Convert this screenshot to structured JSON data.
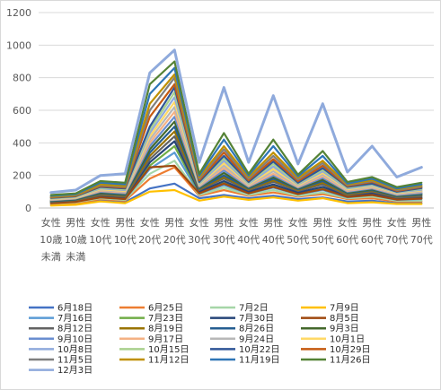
{
  "chart_data": {
    "type": "line",
    "ylim": [
      0,
      1200
    ],
    "yticks": [
      0,
      200,
      400,
      600,
      800,
      1000,
      1200
    ],
    "grid": "horizontal",
    "legend_position": "bottom",
    "categories": [
      {
        "sex": "女性",
        "age": "10歳未満"
      },
      {
        "sex": "男性",
        "age": "10歳未満"
      },
      {
        "sex": "女性",
        "age": "10代"
      },
      {
        "sex": "男性",
        "age": "10代"
      },
      {
        "sex": "女性",
        "age": "20代"
      },
      {
        "sex": "男性",
        "age": "20代"
      },
      {
        "sex": "女性",
        "age": "30代"
      },
      {
        "sex": "男性",
        "age": "30代"
      },
      {
        "sex": "女性",
        "age": "40代"
      },
      {
        "sex": "男性",
        "age": "40代"
      },
      {
        "sex": "女性",
        "age": "50代"
      },
      {
        "sex": "男性",
        "age": "50代"
      },
      {
        "sex": "女性",
        "age": "60代"
      },
      {
        "sex": "男性",
        "age": "60代"
      },
      {
        "sex": "女性",
        "age": "70代"
      },
      {
        "sex": "男性",
        "age": "70代"
      }
    ],
    "category_label_rows": [
      [
        "女性",
        "男性",
        "女性",
        "男性",
        "女性",
        "男性",
        "女性",
        "男性",
        "女性",
        "男性",
        "女性",
        "男性",
        "女性",
        "男性",
        "女性",
        "男性"
      ],
      [
        "10歳",
        "10歳",
        "10代",
        "10代",
        "20代",
        "20代",
        "30代",
        "30代",
        "40代",
        "40代",
        "50代",
        "50代",
        "60代",
        "60代",
        "70代",
        "70代"
      ],
      [
        "未満",
        "未満",
        "",
        "",
        "",
        "",
        "",
        "",
        "",
        "",
        "",
        "",
        "",
        "",
        "",
        ""
      ]
    ],
    "series": [
      {
        "name": "6月18日",
        "color": "#4472c4",
        "values": [
          20,
          25,
          45,
          35,
          120,
          150,
          60,
          80,
          60,
          75,
          55,
          65,
          40,
          45,
          30,
          30
        ]
      },
      {
        "name": "6月25日",
        "color": "#ed7d31",
        "values": [
          25,
          30,
          55,
          45,
          180,
          250,
          75,
          110,
          75,
          95,
          70,
          85,
          55,
          60,
          40,
          40
        ]
      },
      {
        "name": "7月2日",
        "color": "#a5d6a7",
        "values": [
          28,
          35,
          60,
          50,
          210,
          290,
          80,
          125,
          80,
          110,
          75,
          95,
          60,
          70,
          45,
          45
        ]
      },
      {
        "name": "7月9日",
        "color": "#ffc000",
        "values": [
          15,
          20,
          40,
          30,
          100,
          110,
          45,
          70,
          50,
          65,
          45,
          60,
          30,
          35,
          25,
          25
        ]
      },
      {
        "name": "7月16日",
        "color": "#5b9bd5",
        "values": [
          30,
          40,
          65,
          55,
          240,
          340,
          90,
          140,
          90,
          125,
          85,
          110,
          65,
          80,
          50,
          55
        ]
      },
      {
        "name": "7月23日",
        "color": "#70ad47",
        "values": [
          32,
          42,
          70,
          60,
          260,
          380,
          95,
          155,
          95,
          135,
          90,
          120,
          70,
          85,
          55,
          60
        ]
      },
      {
        "name": "7月30日",
        "color": "#264478",
        "values": [
          35,
          45,
          75,
          65,
          280,
          410,
          100,
          165,
          100,
          145,
          95,
          130,
          75,
          90,
          60,
          65
        ]
      },
      {
        "name": "8月5日",
        "color": "#9e480e",
        "values": [
          30,
          38,
          65,
          55,
          250,
          260,
          90,
          150,
          90,
          130,
          85,
          115,
          68,
          80,
          52,
          58
        ]
      },
      {
        "name": "8月12日",
        "color": "#636363",
        "values": [
          38,
          48,
          80,
          70,
          300,
          440,
          110,
          180,
          110,
          160,
          105,
          145,
          80,
          100,
          65,
          72
        ]
      },
      {
        "name": "8月19日",
        "color": "#997300",
        "values": [
          40,
          50,
          85,
          75,
          320,
          470,
          115,
          190,
          115,
          170,
          110,
          155,
          85,
          105,
          70,
          78
        ]
      },
      {
        "name": "8月26日",
        "color": "#255e91",
        "values": [
          42,
          52,
          90,
          80,
          340,
          500,
          120,
          200,
          120,
          180,
          115,
          165,
          90,
          110,
          72,
          82
        ]
      },
      {
        "name": "9月3日",
        "color": "#43682b",
        "values": [
          45,
          55,
          95,
          85,
          360,
          530,
          125,
          215,
          125,
          190,
          120,
          175,
          95,
          115,
          75,
          88
        ]
      },
      {
        "name": "9月10日",
        "color": "#698ed0",
        "values": [
          48,
          58,
          100,
          90,
          380,
          560,
          130,
          230,
          130,
          200,
          125,
          185,
          100,
          120,
          80,
          92
        ]
      },
      {
        "name": "9月17日",
        "color": "#f4b183",
        "values": [
          50,
          60,
          105,
          95,
          400,
          590,
          135,
          245,
          135,
          210,
          130,
          195,
          105,
          125,
          85,
          98
        ]
      },
      {
        "name": "9月24日",
        "color": "#b7b7b7",
        "values": [
          52,
          62,
          110,
          100,
          420,
          620,
          140,
          260,
          140,
          225,
          135,
          205,
          110,
          130,
          88,
          102
        ]
      },
      {
        "name": "10月1日",
        "color": "#ffd966",
        "values": [
          55,
          65,
          115,
          105,
          440,
          650,
          145,
          275,
          145,
          240,
          140,
          215,
          115,
          135,
          92,
          108
        ]
      },
      {
        "name": "10月8日",
        "color": "#8faadc",
        "values": [
          58,
          68,
          120,
          110,
          460,
          680,
          150,
          290,
          150,
          255,
          145,
          225,
          120,
          140,
          95,
          112
        ]
      },
      {
        "name": "10月15日",
        "color": "#a9d18e",
        "values": [
          60,
          70,
          125,
          115,
          480,
          710,
          155,
          305,
          155,
          270,
          150,
          235,
          125,
          145,
          98,
          118
        ]
      },
      {
        "name": "10月22日",
        "color": "#2f5597",
        "values": [
          62,
          72,
          130,
          120,
          500,
          740,
          160,
          320,
          160,
          285,
          155,
          245,
          130,
          150,
          100,
          122
        ]
      },
      {
        "name": "10月29日",
        "color": "#c55a11",
        "values": [
          65,
          75,
          135,
          125,
          560,
          760,
          170,
          340,
          170,
          300,
          165,
          260,
          135,
          160,
          105,
          128
        ]
      },
      {
        "name": "11月5日",
        "color": "#7f7f7f",
        "values": [
          68,
          78,
          140,
          130,
          600,
          800,
          180,
          360,
          180,
          320,
          175,
          275,
          140,
          165,
          110,
          132
        ]
      },
      {
        "name": "11月12日",
        "color": "#bf9000",
        "values": [
          70,
          80,
          145,
          135,
          640,
          820,
          190,
          380,
          190,
          340,
          185,
          290,
          145,
          170,
          115,
          138
        ]
      },
      {
        "name": "11月19日",
        "color": "#2e75b6",
        "values": [
          75,
          85,
          155,
          145,
          700,
          860,
          200,
          420,
          200,
          380,
          195,
          320,
          150,
          180,
          120,
          145
        ]
      },
      {
        "name": "11月26日",
        "color": "#548235",
        "values": [
          80,
          90,
          165,
          155,
          760,
          900,
          210,
          460,
          210,
          420,
          205,
          350,
          160,
          190,
          128,
          155
        ]
      },
      {
        "name": "12月3日",
        "color": "#8faadc",
        "values": [
          95,
          110,
          200,
          210,
          830,
          970,
          280,
          740,
          280,
          690,
          270,
          640,
          220,
          380,
          190,
          250
        ]
      }
    ]
  }
}
